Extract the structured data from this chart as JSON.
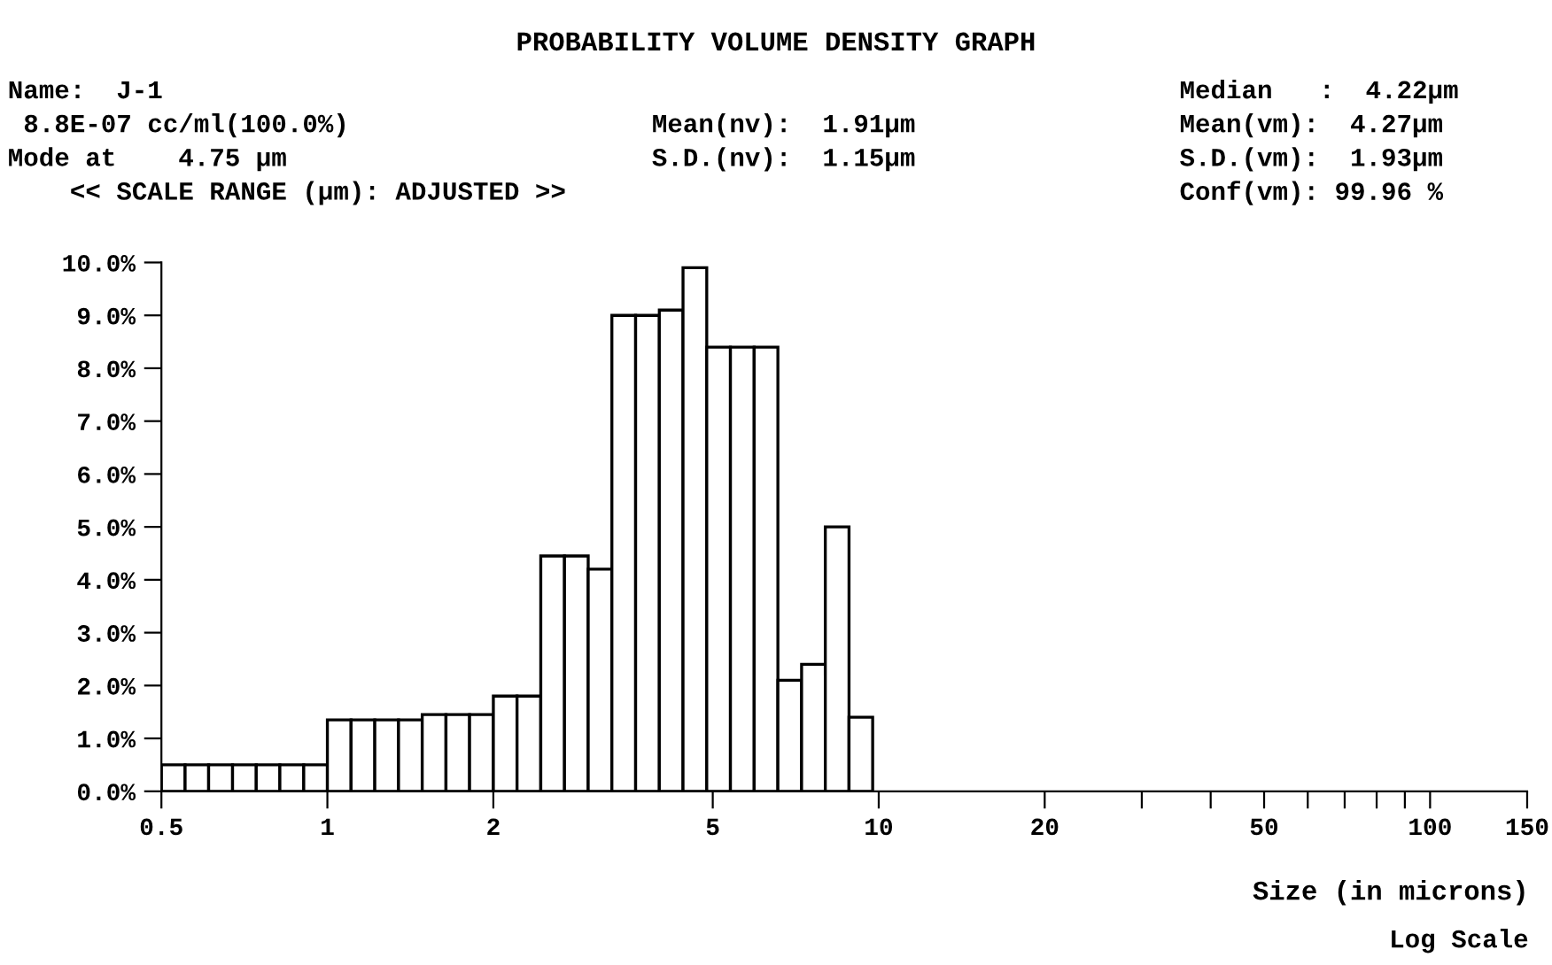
{
  "chart_data": {
    "type": "histogram",
    "title": "PROBABILITY VOLUME DENSITY GRAPH",
    "xlabel": "Size (in microns)",
    "annotations": [
      "Name:  J-1",
      "8.8E-07 cc/ml(100.0%)",
      "Mode at    4.75 µm",
      "<< SCALE RANGE (µm): ADJUSTED >>",
      "Mean(nv):  1.91µm",
      "S.D.(nv):  1.15µm",
      "Median   :  4.22µm",
      "Mean(vm):  4.27µm",
      "S.D.(vm):  1.93µm",
      "Conf(vm): 99.96 %",
      "Log Scale"
    ],
    "bins": [
      0.5,
      0.552,
      0.609,
      0.673,
      0.743,
      0.82,
      0.906,
      1.0,
      1.104,
      1.219,
      1.346,
      1.486,
      1.641,
      1.811,
      2.0,
      2.208,
      2.438,
      2.692,
      2.972,
      3.281,
      3.623,
      4.0,
      4.416,
      4.876,
      5.383,
      5.944,
      6.563,
      7.246,
      8.0,
      8.833,
      9.75
    ],
    "values": [
      0.5,
      0.5,
      0.5,
      0.5,
      0.5,
      0.5,
      0.5,
      1.35,
      1.35,
      1.35,
      1.35,
      1.45,
      1.45,
      1.45,
      1.8,
      1.8,
      4.45,
      4.45,
      4.2,
      9.0,
      9.0,
      9.1,
      9.9,
      8.4,
      8.4,
      8.4,
      2.1,
      2.4,
      5.0,
      1.4
    ],
    "color": "#ffffff",
    "log": "x",
    "xlim": [
      0.5,
      150
    ],
    "xticks": [
      0.5,
      1,
      2,
      5,
      10,
      20,
      {
        "value": 30,
        "label": null
      },
      {
        "value": 40,
        "label": null
      },
      50,
      {
        "value": 60,
        "label": null
      },
      {
        "value": 70,
        "label": null
      },
      {
        "value": 80,
        "label": null
      },
      {
        "value": 90,
        "label": null
      },
      100,
      150
    ],
    "ylim": [
      0,
      10
    ],
    "yticks": [
      {
        "value": 0,
        "label": "0.0%"
      },
      {
        "value": 1,
        "label": "1.0%"
      },
      {
        "value": 2,
        "label": "2.0%"
      },
      {
        "value": 3,
        "label": "3.0%"
      },
      {
        "value": 4,
        "label": "4.0%"
      },
      {
        "value": 5,
        "label": "5.0%"
      },
      {
        "value": 6,
        "label": "6.0%"
      },
      {
        "value": 7,
        "label": "7.0%"
      },
      {
        "value": 8,
        "label": "8.0%"
      },
      {
        "value": 9,
        "label": "9.0%"
      },
      {
        "value": 10,
        "label": "10.0%"
      }
    ],
    "grid": false
  }
}
